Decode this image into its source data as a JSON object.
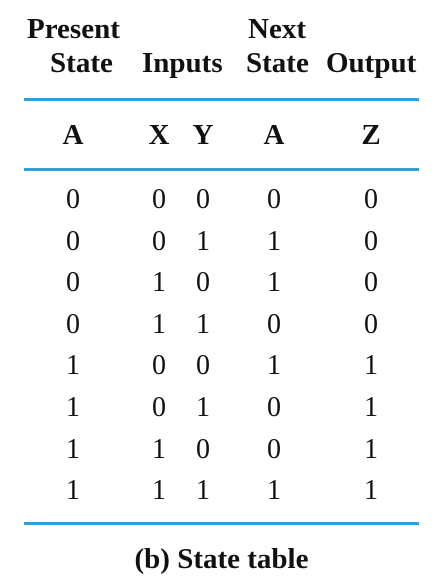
{
  "header": {
    "present_state": [
      "Present",
      "State"
    ],
    "inputs": "Inputs",
    "next_state": [
      "Next",
      "State"
    ],
    "output": "Output"
  },
  "columns": [
    "A",
    "X",
    "Y",
    "A",
    "Z"
  ],
  "rows": [
    [
      "0",
      "0",
      "0",
      "0",
      "0"
    ],
    [
      "0",
      "0",
      "1",
      "1",
      "0"
    ],
    [
      "0",
      "1",
      "0",
      "1",
      "0"
    ],
    [
      "0",
      "1",
      "1",
      "0",
      "0"
    ],
    [
      "1",
      "0",
      "0",
      "1",
      "1"
    ],
    [
      "1",
      "0",
      "1",
      "0",
      "1"
    ],
    [
      "1",
      "1",
      "0",
      "0",
      "1"
    ],
    [
      "1",
      "1",
      "1",
      "1",
      "1"
    ]
  ],
  "caption": "(b) State table",
  "colors": {
    "rule": "#2fa0d6",
    "text": "#111111"
  }
}
